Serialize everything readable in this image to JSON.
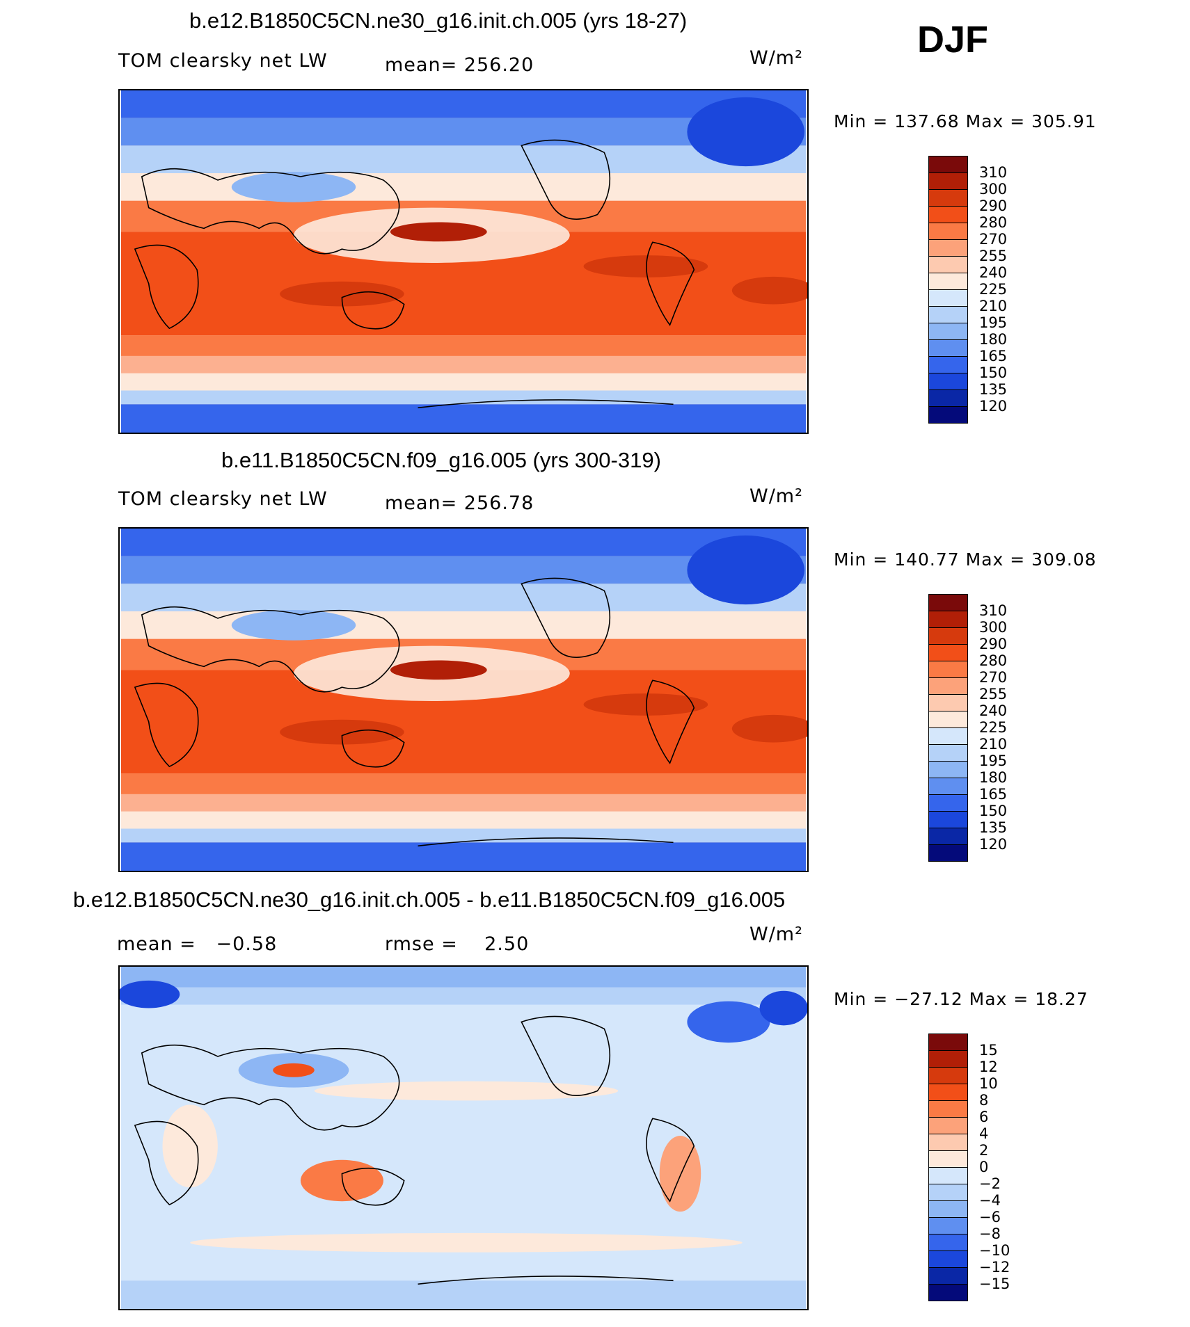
{
  "season": "DJF",
  "panels": [
    {
      "id": "top",
      "title": "b.e12.B1850C5CN.ne30_g16.init.ch.005 (yrs 18-27)",
      "variable": "TOM clearsky net LW",
      "mean_label": "mean=",
      "mean_value": "256.20",
      "units": "W/m²",
      "minmax": "Min  =  137.68  Max  =  305.91",
      "colorbar": [
        "310",
        "300",
        "290",
        "280",
        "270",
        "255",
        "240",
        "225",
        "210",
        "195",
        "180",
        "165",
        "150",
        "135",
        "120"
      ]
    },
    {
      "id": "middle",
      "title": "b.e11.B1850C5CN.f09_g16.005 (yrs 300-319)",
      "variable": "TOM clearsky net LW",
      "mean_label": "mean=",
      "mean_value": "256.78",
      "units": "W/m²",
      "minmax": "Min  =  140.77  Max  =  309.08",
      "colorbar": [
        "310",
        "300",
        "290",
        "280",
        "270",
        "255",
        "240",
        "225",
        "210",
        "195",
        "180",
        "165",
        "150",
        "135",
        "120"
      ]
    },
    {
      "id": "bottom",
      "title": "b.e12.B1850C5CN.ne30_g16.init.ch.005 - b.e11.B1850C5CN.f09_g16.005",
      "mean_label": "mean =",
      "mean_value": "−0.58",
      "rmse_label": "rmse =",
      "rmse_value": "2.50",
      "units": "W/m²",
      "minmax": "Min  =  −27.12  Max  =    18.27",
      "colorbar": [
        "15",
        "12",
        "10",
        "8",
        "6",
        "4",
        "2",
        "0",
        "−2",
        "−4",
        "−6",
        "−8",
        "−10",
        "−12",
        "−15"
      ]
    }
  ],
  "colors": {
    "abs_scale": [
      "#7a0a0a",
      "#b11f07",
      "#d63a0d",
      "#f24f18",
      "#fa7a45",
      "#fca27a",
      "#fdcab0",
      "#fde9db",
      "#d5e7fb",
      "#b5d2f8",
      "#8db6f4",
      "#5f8ff0",
      "#3565ec",
      "#1b47dc",
      "#0a27a6",
      "#040a7a"
    ],
    "diff_scale": [
      "#7a0a0a",
      "#b11f07",
      "#d63a0d",
      "#f24f18",
      "#fa7a45",
      "#fca27a",
      "#fdcab0",
      "#fde9db",
      "#d5e7fb",
      "#b5d2f8",
      "#8db6f4",
      "#5f8ff0",
      "#3565ec",
      "#1b47dc",
      "#0a27a6",
      "#040a7a"
    ]
  }
}
